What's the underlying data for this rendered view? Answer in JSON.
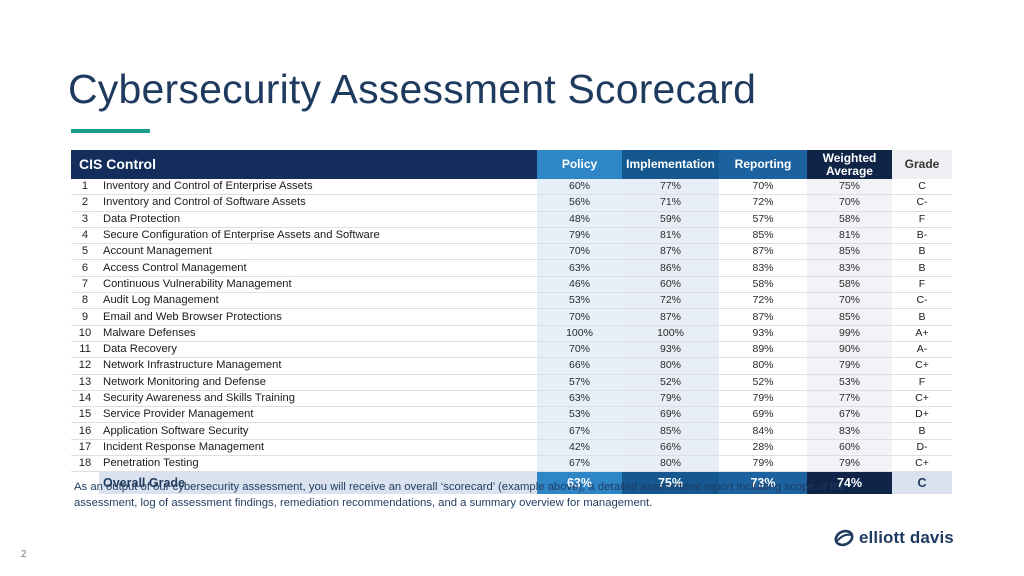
{
  "page": {
    "title": "Cybersecurity Assessment Scorecard",
    "page_number": "2",
    "caption": "As an output of our cybersecurity assessment, you will receive an overall ‘scorecard’ (example above), a detailed assessment report including scope of the assessment, log of assessment findings, remediation recommendations, and a summary overview for management.",
    "logo_text": "elliott davis",
    "colors": {
      "title": "#1f3a5f",
      "accent_rule": "#1a9d8c",
      "header_navy": "#132e5c",
      "policy_blue": "#2f86c6",
      "implementation_blue": "#15588f",
      "reporting_blue": "#1d62a0",
      "weighted_navy": "#0f2447"
    }
  },
  "table": {
    "headers": {
      "control": "CIS Control",
      "policy": "Policy",
      "implementation": "Implementation",
      "reporting": "Reporting",
      "weighted_line1": "Weighted",
      "weighted_line2": "Average",
      "grade": "Grade"
    },
    "rows": [
      {
        "num": "1",
        "name": "Inventory and Control of Enterprise Assets",
        "policy": "60%",
        "implementation": "77%",
        "reporting": "70%",
        "weighted": "75%",
        "grade": "C"
      },
      {
        "num": "2",
        "name": "Inventory and Control of Software Assets",
        "policy": "56%",
        "implementation": "71%",
        "reporting": "72%",
        "weighted": "70%",
        "grade": "C-"
      },
      {
        "num": "3",
        "name": "Data Protection",
        "policy": "48%",
        "implementation": "59%",
        "reporting": "57%",
        "weighted": "58%",
        "grade": "F"
      },
      {
        "num": "4",
        "name": "Secure Configuration of Enterprise Assets and Software",
        "policy": "79%",
        "implementation": "81%",
        "reporting": "85%",
        "weighted": "81%",
        "grade": "B-"
      },
      {
        "num": "5",
        "name": "Account Management",
        "policy": "70%",
        "implementation": "87%",
        "reporting": "87%",
        "weighted": "85%",
        "grade": "B"
      },
      {
        "num": "6",
        "name": "Access Control Management",
        "policy": "63%",
        "implementation": "86%",
        "reporting": "83%",
        "weighted": "83%",
        "grade": "B"
      },
      {
        "num": "7",
        "name": "Continuous Vulnerability Management",
        "policy": "46%",
        "implementation": "60%",
        "reporting": "58%",
        "weighted": "58%",
        "grade": "F"
      },
      {
        "num": "8",
        "name": "Audit Log Management",
        "policy": "53%",
        "implementation": "72%",
        "reporting": "72%",
        "weighted": "70%",
        "grade": "C-"
      },
      {
        "num": "9",
        "name": "Email and Web Browser Protections",
        "policy": "70%",
        "implementation": "87%",
        "reporting": "87%",
        "weighted": "85%",
        "grade": "B"
      },
      {
        "num": "10",
        "name": "Malware Defenses",
        "policy": "100%",
        "implementation": "100%",
        "reporting": "93%",
        "weighted": "99%",
        "grade": "A+"
      },
      {
        "num": "11",
        "name": "Data Recovery",
        "policy": "70%",
        "implementation": "93%",
        "reporting": "89%",
        "weighted": "90%",
        "grade": "A-"
      },
      {
        "num": "12",
        "name": "Network Infrastructure Management",
        "policy": "66%",
        "implementation": "80%",
        "reporting": "80%",
        "weighted": "79%",
        "grade": "C+"
      },
      {
        "num": "13",
        "name": "Network Monitoring and Defense",
        "policy": "57%",
        "implementation": "52%",
        "reporting": "52%",
        "weighted": "53%",
        "grade": "F"
      },
      {
        "num": "14",
        "name": "Security Awareness and Skills Training",
        "policy": "63%",
        "implementation": "79%",
        "reporting": "79%",
        "weighted": "77%",
        "grade": "C+"
      },
      {
        "num": "15",
        "name": "Service Provider Management",
        "policy": "53%",
        "implementation": "69%",
        "reporting": "69%",
        "weighted": "67%",
        "grade": "D+"
      },
      {
        "num": "16",
        "name": "Application Software Security",
        "policy": "67%",
        "implementation": "85%",
        "reporting": "84%",
        "weighted": "83%",
        "grade": "B"
      },
      {
        "num": "17",
        "name": "Incident Response Management",
        "policy": "42%",
        "implementation": "66%",
        "reporting": "28%",
        "weighted": "60%",
        "grade": "D-"
      },
      {
        "num": "18",
        "name": "Penetration Testing",
        "policy": "67%",
        "implementation": "80%",
        "reporting": "79%",
        "weighted": "79%",
        "grade": "C+"
      }
    ],
    "overall": {
      "label": "Overall Grade",
      "policy": "63%",
      "implementation": "75%",
      "reporting": "73%",
      "weighted": "74%",
      "grade": "C"
    }
  }
}
